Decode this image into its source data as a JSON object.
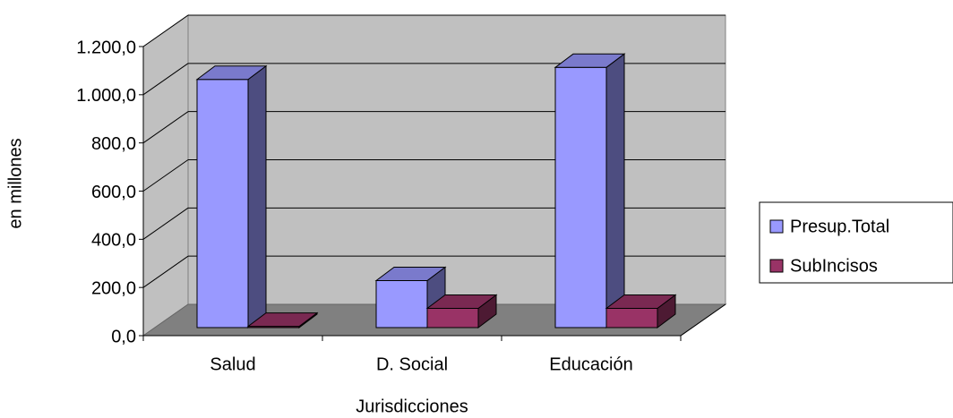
{
  "chart_data": {
    "type": "bar3d",
    "x_label": "Jurisdicciones",
    "y_label": "en millones",
    "categories": [
      "Salud",
      "D. Social",
      "Educación"
    ],
    "series": [
      {
        "name": "Presup.Total",
        "color": "#9999ff",
        "values": [
          1030,
          195,
          1080
        ]
      },
      {
        "name": "SubIncisos",
        "color": "#993366",
        "values": [
          5,
          80,
          80
        ]
      }
    ],
    "ylim": [
      0,
      1200
    ],
    "yticks": [
      {
        "value": 0,
        "label": "0,0"
      },
      {
        "value": 200,
        "label": "200,0"
      },
      {
        "value": 400,
        "label": "400,0"
      },
      {
        "value": 600,
        "label": "600,0"
      },
      {
        "value": 800,
        "label": "800,0"
      },
      {
        "value": 1000,
        "label": "1.000,0"
      },
      {
        "value": 1200,
        "label": "1.200,0"
      }
    ],
    "grid": true,
    "legend": "right"
  }
}
